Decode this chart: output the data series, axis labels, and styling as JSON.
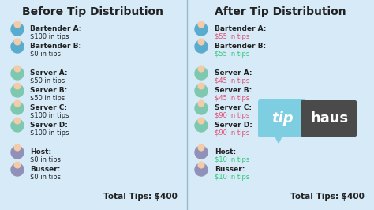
{
  "bg_color": "#d6eaf8",
  "title_left": "Before Tip Distribution",
  "title_right": "After Tip Distribution",
  "text_color_dark": "#222222",
  "text_color_red": "#e05070",
  "text_color_green": "#30c878",
  "left_entries": [
    {
      "label": "Bartender A:",
      "value": "$100 in tips",
      "group": "bartender"
    },
    {
      "label": "Bartender B:",
      "value": "$0 in tips",
      "group": "bartender"
    },
    {
      "label": "Server A:",
      "value": "$50 in tips",
      "group": "server"
    },
    {
      "label": "Server B:",
      "value": "$50 in tips",
      "group": "server"
    },
    {
      "label": "Server C:",
      "value": "$100 in tips",
      "group": "server"
    },
    {
      "label": "Server D:",
      "value": "$100 in tips",
      "group": "server"
    },
    {
      "label": "Host:",
      "value": "$0 in tips",
      "group": "host"
    },
    {
      "label": "Busser:",
      "value": "$0 in tips",
      "group": "host"
    }
  ],
  "right_entries": [
    {
      "label": "Bartender A:",
      "value": "$55 in tips",
      "group": "bartender",
      "vcolor": "red"
    },
    {
      "label": "Bartender B:",
      "value": "$55 in tips",
      "group": "bartender",
      "vcolor": "green"
    },
    {
      "label": "Server A:",
      "value": "$45 in tips",
      "group": "server",
      "vcolor": "red"
    },
    {
      "label": "Server B:",
      "value": "$45 in tips",
      "group": "server",
      "vcolor": "red"
    },
    {
      "label": "Server C:",
      "value": "$90 in tips",
      "group": "server",
      "vcolor": "red"
    },
    {
      "label": "Server D:",
      "value": "$90 in tips",
      "group": "server",
      "vcolor": "red"
    },
    {
      "label": "Host:",
      "value": "$10 in tips",
      "group": "host",
      "vcolor": "green"
    },
    {
      "label": "Busser:",
      "value": "$10 in tips",
      "group": "host",
      "vcolor": "green"
    }
  ],
  "total_left": "Total Tips: $400",
  "total_right": "Total Tips: $400",
  "tiphaus_tip_color": "#7ccee0",
  "tiphaus_haus_color": "#4a4a4a",
  "tiphaus_text_color": "#ffffff",
  "icon_colors": {
    "bartender": "#5aacce",
    "server": "#7ec8b0",
    "host": "#9090b8"
  }
}
